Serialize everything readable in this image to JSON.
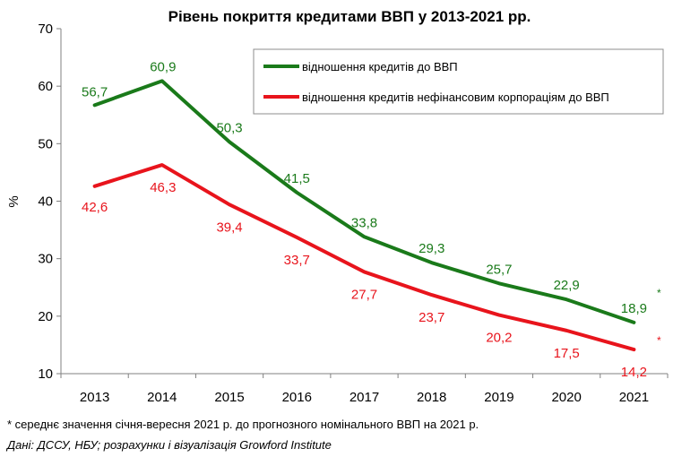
{
  "chart_data": {
    "type": "line",
    "title": "Рівень покриття кредитами ВВП у 2013-2021 рр.",
    "ylabel": "%",
    "xlabel": "",
    "ylim": [
      10,
      70
    ],
    "yticks": [
      10,
      20,
      30,
      40,
      50,
      60,
      70
    ],
    "categories": [
      "2013",
      "2014",
      "2015",
      "2016",
      "2017",
      "2018",
      "2019",
      "2020",
      "2021"
    ],
    "grid": false,
    "legend_position": "top-right",
    "series": [
      {
        "name": "відношення кредитів до ВВП",
        "color": "#1a7a1a",
        "values": [
          56.7,
          60.9,
          50.3,
          41.5,
          33.8,
          29.3,
          25.7,
          22.9,
          18.9
        ],
        "labels": [
          "56,7",
          "60,9",
          "50,3",
          "41,5",
          "33,8",
          "29,3",
          "25,7",
          "22,9",
          "18,9"
        ]
      },
      {
        "name": "відношення кредитів нефінансовим корпораціям до ВВП",
        "color": "#e8141c",
        "values": [
          42.6,
          46.3,
          39.4,
          33.7,
          27.7,
          23.7,
          20.2,
          17.5,
          14.2
        ],
        "labels": [
          "42,6",
          "46,3",
          "39,4",
          "33,7",
          "27,7",
          "23,7",
          "20,2",
          "17,5",
          "14,2"
        ]
      }
    ],
    "annotation_mark": "*"
  },
  "notes": {
    "footnote": "* середнє значення січня-вересня 2021 р. до прогнозного номінального ВВП на 2021 р.",
    "source": "Дані: ДССУ, НБУ; розрахунки і візуалізація Growford Institute"
  }
}
